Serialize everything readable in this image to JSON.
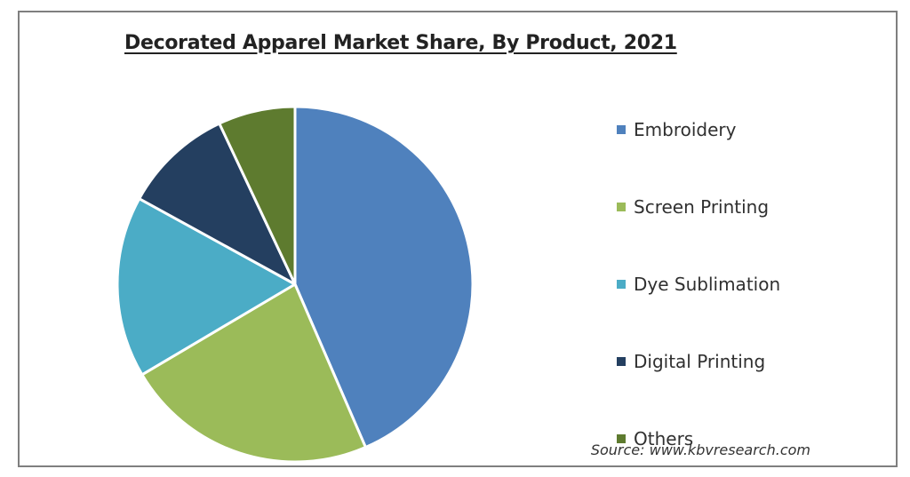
{
  "chart_data": {
    "type": "pie",
    "title": "Decorated Apparel Market Share, By Product, 2021",
    "categories": [
      "Embroidery",
      "Screen Printing",
      "Dye Sublimation",
      "Digital Printing",
      "Others"
    ],
    "values": [
      43.5,
      23.0,
      16.5,
      10.0,
      7.0
    ],
    "unit": "%",
    "colors": [
      "#4f81bd",
      "#9bbb59",
      "#4bacc6",
      "#243f60",
      "#5e7b2f"
    ],
    "legend_position": "right",
    "start_angle_deg": 0,
    "direction": "clockwise"
  },
  "source": "Source:  www.kbvresearch.com"
}
